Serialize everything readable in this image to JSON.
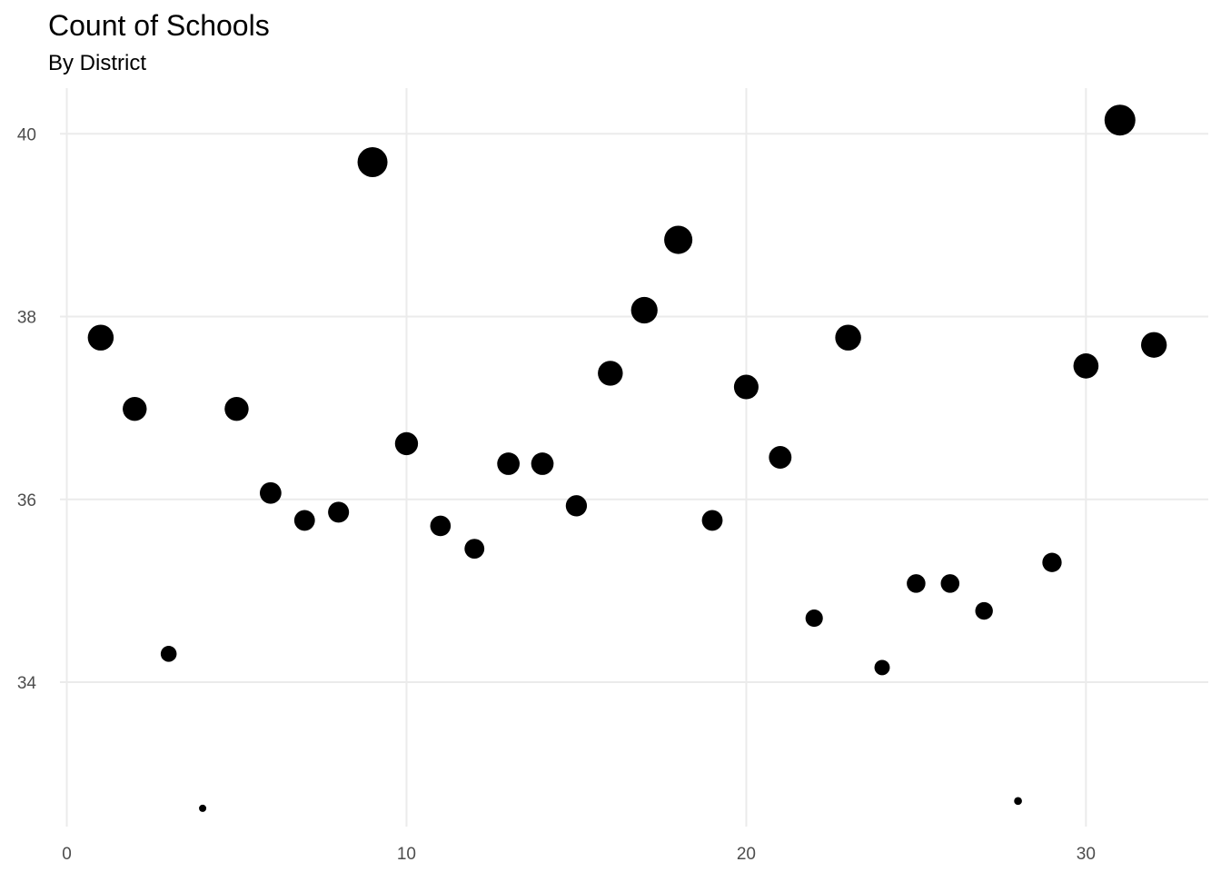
{
  "chart_data": {
    "type": "scatter",
    "title": "Count of Schools",
    "subtitle": "By District",
    "xlabel": "",
    "ylabel": "",
    "xlim": [
      -0.2,
      33.6
    ],
    "ylim": [
      32.42,
      40.5
    ],
    "x_ticks": [
      0,
      10,
      20,
      30
    ],
    "y_ticks": [
      34,
      36,
      38,
      40
    ],
    "grid": true,
    "legend": "none",
    "size_encodes": "y",
    "points": [
      {
        "x": 1,
        "y": 37.77
      },
      {
        "x": 2,
        "y": 36.99
      },
      {
        "x": 3,
        "y": 34.31
      },
      {
        "x": 4,
        "y": 32.62
      },
      {
        "x": 5,
        "y": 36.99
      },
      {
        "x": 6,
        "y": 36.07
      },
      {
        "x": 7,
        "y": 35.77
      },
      {
        "x": 8,
        "y": 35.86
      },
      {
        "x": 9,
        "y": 39.69
      },
      {
        "x": 10,
        "y": 36.61
      },
      {
        "x": 11,
        "y": 35.71
      },
      {
        "x": 12,
        "y": 35.46
      },
      {
        "x": 13,
        "y": 36.39
      },
      {
        "x": 14,
        "y": 36.39
      },
      {
        "x": 15,
        "y": 35.93
      },
      {
        "x": 16,
        "y": 37.38
      },
      {
        "x": 17,
        "y": 38.07
      },
      {
        "x": 18,
        "y": 38.84
      },
      {
        "x": 19,
        "y": 35.77
      },
      {
        "x": 20,
        "y": 37.23
      },
      {
        "x": 21,
        "y": 36.46
      },
      {
        "x": 22,
        "y": 34.7
      },
      {
        "x": 23,
        "y": 37.77
      },
      {
        "x": 24,
        "y": 34.16
      },
      {
        "x": 25,
        "y": 35.08
      },
      {
        "x": 26,
        "y": 35.08
      },
      {
        "x": 27,
        "y": 34.78
      },
      {
        "x": 28,
        "y": 32.7
      },
      {
        "x": 29,
        "y": 35.31
      },
      {
        "x": 30,
        "y": 37.46
      },
      {
        "x": 31,
        "y": 40.15
      },
      {
        "x": 32,
        "y": 37.69
      }
    ],
    "colors": {
      "point": "#000000",
      "grid": "#ebebeb",
      "tick_label": "#4d4d4d"
    }
  }
}
